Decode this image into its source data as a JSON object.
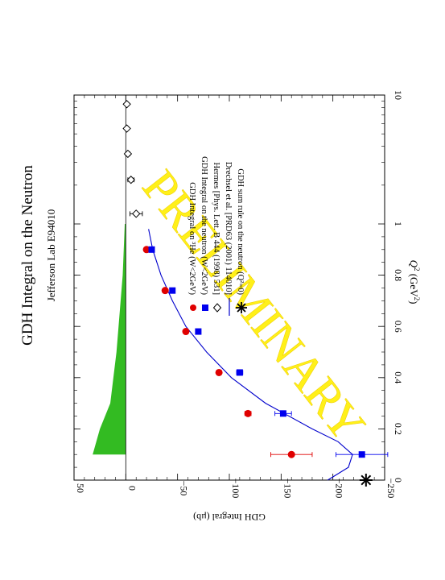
{
  "chart_data": {
    "type": "scatter",
    "orientation": "rotated-90",
    "title": "GDH Integral on the Neutron",
    "subtitle": "Jefferson Lab E94010",
    "watermark": "PRELIMINARY",
    "xlabel_main": "Q",
    "xlabel_sup": "2",
    "xlabel_units": "(GeV",
    "xlabel_units_sup": "2",
    "xlabel_close": ")",
    "ylabel": "GDH Integral (μb)",
    "xlim": [
      0,
      1
    ],
    "x_scale": "linear-to-1-then-log-to-10",
    "ylim": [
      -250,
      50
    ],
    "x_ticks": [
      {
        "value": 0,
        "label": "0"
      },
      {
        "value": 0.2,
        "label": "0.2"
      },
      {
        "value": 0.4,
        "label": "0.4"
      },
      {
        "value": 0.6,
        "label": "0.6"
      },
      {
        "value": 0.8,
        "label": "0.8"
      },
      {
        "value": 1,
        "label": "1"
      },
      {
        "value": 10,
        "label": "10"
      }
    ],
    "y_ticks": [
      {
        "value": 50,
        "label": "50"
      },
      {
        "value": 0,
        "label": "0"
      },
      {
        "value": -50,
        "label": "−50"
      },
      {
        "value": -100,
        "label": "−100"
      },
      {
        "value": -150,
        "label": "−150"
      },
      {
        "value": -200,
        "label": "−200"
      },
      {
        "value": -250,
        "label": "−250"
      }
    ],
    "series": [
      {
        "name": "GDH Integral on ³He (W<2GeV)",
        "marker": "circle",
        "color": "#e00000",
        "points": [
          {
            "x": 0.1,
            "y": -160,
            "err": 20
          },
          {
            "x": 0.26,
            "y": -118,
            "err": 3
          },
          {
            "x": 0.42,
            "y": -90,
            "err": 2
          },
          {
            "x": 0.58,
            "y": -58,
            "err": 1
          },
          {
            "x": 0.74,
            "y": -38,
            "err": 1
          },
          {
            "x": 0.9,
            "y": -20,
            "err": 1
          }
        ]
      },
      {
        "name": "GDH Integral on the neutron (W<2GeV)",
        "marker": "square",
        "color": "#0000ee",
        "points": [
          {
            "x": 0.1,
            "y": -228,
            "err": 25
          },
          {
            "x": 0.26,
            "y": -152,
            "err": 8
          },
          {
            "x": 0.42,
            "y": -110,
            "err": 3
          },
          {
            "x": 0.58,
            "y": -70,
            "err": 2
          },
          {
            "x": 0.74,
            "y": -45,
            "err": 2
          },
          {
            "x": 0.9,
            "y": -25,
            "err": 1
          }
        ]
      },
      {
        "name": "Hermes [Phys. Lett. B 444 (1998) 531]",
        "marker": "diamond",
        "color": "#000000",
        "points": [
          {
            "x": 1.2,
            "y": -10,
            "err": 6
          },
          {
            "x": 2.2,
            "y": -5,
            "err": 3
          },
          {
            "x": 3.5,
            "y": -2,
            "err": 2
          },
          {
            "x": 5.5,
            "y": -1,
            "err": 1
          },
          {
            "x": 8.5,
            "y": -1,
            "err": 1
          }
        ]
      },
      {
        "name": "Drechsel et al. [PRD63 (2001) 114010]",
        "marker": "line",
        "color": "#0000cc",
        "points": [
          {
            "x": 0.0,
            "y": -195
          },
          {
            "x": 0.05,
            "y": -215
          },
          {
            "x": 0.1,
            "y": -219
          },
          {
            "x": 0.15,
            "y": -205
          },
          {
            "x": 0.2,
            "y": -180
          },
          {
            "x": 0.3,
            "y": -135
          },
          {
            "x": 0.4,
            "y": -102
          },
          {
            "x": 0.5,
            "y": -78
          },
          {
            "x": 0.6,
            "y": -58
          },
          {
            "x": 0.7,
            "y": -45
          },
          {
            "x": 0.8,
            "y": -34
          },
          {
            "x": 0.9,
            "y": -26
          },
          {
            "x": 0.98,
            "y": -22
          }
        ]
      },
      {
        "name": "GDH sum rule on the neutron (Q²=0)",
        "marker": "asterisk",
        "color": "#000000",
        "points": [
          {
            "x": 0,
            "y": -232
          }
        ]
      }
    ],
    "band": {
      "color": "#33bb22",
      "points": [
        {
          "x": 0.1,
          "y": 32
        },
        {
          "x": 0.2,
          "y": 25
        },
        {
          "x": 0.3,
          "y": 15
        },
        {
          "x": 0.4,
          "y": 12
        },
        {
          "x": 0.5,
          "y": 9
        },
        {
          "x": 0.6,
          "y": 7
        },
        {
          "x": 0.7,
          "y": 5
        },
        {
          "x": 0.8,
          "y": 3
        },
        {
          "x": 0.9,
          "y": 2
        },
        {
          "x": 1.0,
          "y": 1
        }
      ]
    },
    "legend": {
      "placement": "center",
      "entries": [
        {
          "marker": "circle-square",
          "text": "GDH Integral on ³He (W<2GeV)"
        },
        {
          "marker": "square",
          "text": "GDH Integral on the neutron (W<2GeV)"
        },
        {
          "marker": "diamond",
          "text": "Hermes [Phys. Lett. B 444 (1998) 531]"
        },
        {
          "marker": "line",
          "text": "Drechsel et al. [PRD63 (2001) 114010]"
        },
        {
          "marker": "asterisk",
          "text": "GDH sum rule on the neutron (Q²=0)"
        }
      ]
    },
    "grid": false
  }
}
